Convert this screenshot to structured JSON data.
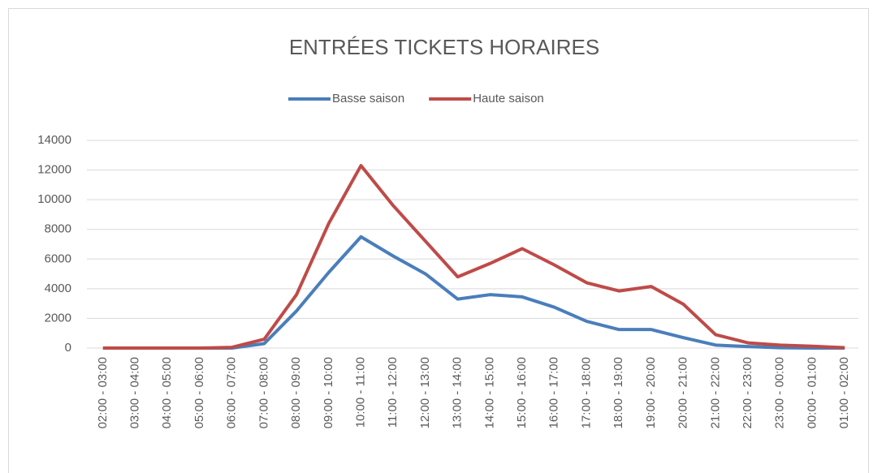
{
  "chart_data": {
    "type": "line",
    "title": "ENTRÉES TICKETS HORAIRES",
    "categories": [
      "02:00 - 03:00",
      "03:00 - 04:00",
      "04:00 - 05:00",
      "05:00 - 06:00",
      "06:00 - 07:00",
      "07:00 - 08:00",
      "08:00 - 09:00",
      "09:00 - 10:00",
      "10:00 - 11:00",
      "11:00 - 12:00",
      "12:00 - 13:00",
      "13:00 - 14:00",
      "14:00 - 15:00",
      "15:00 - 16:00",
      "16:00 - 17:00",
      "17:00 - 18:00",
      "18:00 - 19:00",
      "19:00 - 20:00",
      "20:00 - 21:00",
      "21:00 - 22:00",
      "22:00 - 23:00",
      "23:00 - 00:00",
      "00:00 - 01:00",
      "01:00 - 02:00"
    ],
    "series": [
      {
        "name": "Basse saison",
        "color": "#4a7ebb",
        "values": [
          0,
          0,
          0,
          0,
          0,
          300,
          2500,
          5100,
          7500,
          6200,
          5000,
          3300,
          3600,
          3450,
          2750,
          1800,
          1250,
          1250,
          700,
          200,
          100,
          20,
          0,
          0
        ]
      },
      {
        "name": "Haute saison",
        "color": "#be4b48",
        "values": [
          0,
          0,
          0,
          0,
          50,
          600,
          3600,
          8400,
          12300,
          9600,
          7200,
          4800,
          5700,
          6700,
          5600,
          4400,
          3850,
          4150,
          2950,
          900,
          350,
          200,
          120,
          30
        ]
      }
    ],
    "ylim": [
      0,
      14000
    ],
    "yticks": [
      0,
      2000,
      4000,
      6000,
      8000,
      10000,
      12000,
      14000
    ],
    "grid": true,
    "legend": "top"
  }
}
